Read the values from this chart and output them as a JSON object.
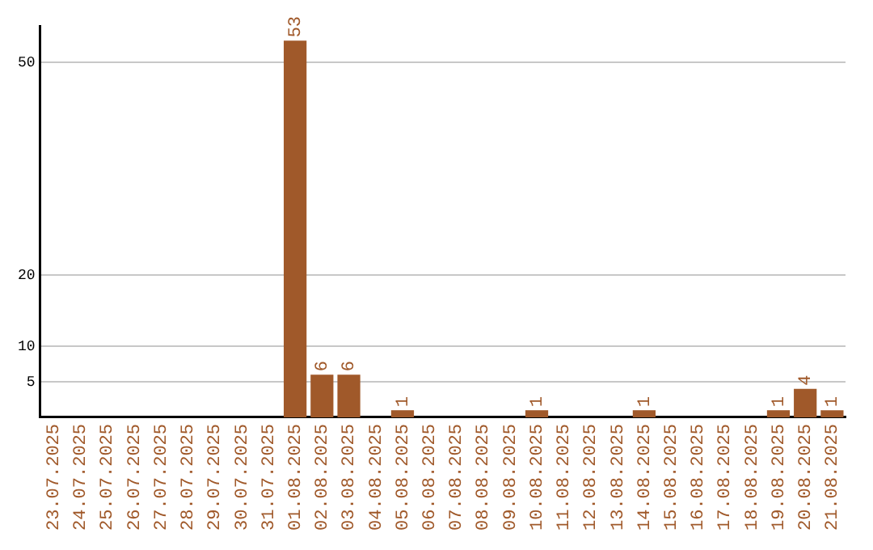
{
  "chart_data": {
    "type": "bar",
    "categories": [
      "23.07.2025",
      "24.07.2025",
      "25.07.2025",
      "26.07.2025",
      "27.07.2025",
      "28.07.2025",
      "29.07.2025",
      "30.07.2025",
      "31.07.2025",
      "01.08.2025",
      "02.08.2025",
      "03.08.2025",
      "04.08.2025",
      "05.08.2025",
      "06.08.2025",
      "07.08.2025",
      "08.08.2025",
      "09.08.2025",
      "10.08.2025",
      "11.08.2025",
      "12.08.2025",
      "13.08.2025",
      "14.08.2025",
      "15.08.2025",
      "16.08.2025",
      "17.08.2025",
      "18.08.2025",
      "19.08.2025",
      "20.08.2025",
      "21.08.2025"
    ],
    "values": [
      0,
      0,
      0,
      0,
      0,
      0,
      0,
      0,
      0,
      53,
      6,
      6,
      0,
      1,
      0,
      0,
      0,
      0,
      1,
      0,
      0,
      0,
      1,
      0,
      0,
      0,
      0,
      1,
      4,
      1
    ],
    "value_labels": [
      null,
      null,
      null,
      null,
      null,
      null,
      null,
      null,
      null,
      "53",
      "6",
      "6",
      null,
      "1",
      null,
      null,
      null,
      null,
      "1",
      null,
      null,
      null,
      "1",
      null,
      null,
      null,
      null,
      "1",
      "4",
      "1"
    ],
    "color": "#a0592a",
    "ylim": [
      0,
      55
    ],
    "yticks": [
      5,
      10,
      20,
      50
    ],
    "grid": "y",
    "legend": false
  }
}
